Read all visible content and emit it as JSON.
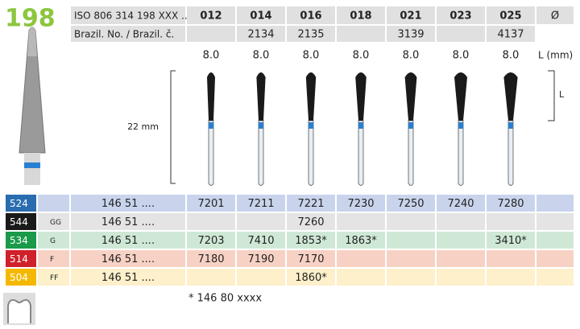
{
  "header": {
    "title": "198",
    "iso_label": "ISO 806 314 198 XXX ...",
    "sizes": [
      "012",
      "014",
      "016",
      "018",
      "021",
      "023",
      "025"
    ],
    "diameter_symbol": "Ø",
    "brazil_label": "Brazil. No. / Brazil. č.",
    "brazil_numbers": [
      null,
      "2134",
      "2135",
      null,
      "3139",
      null,
      "4137"
    ],
    "lengths": [
      "8.0",
      "8.0",
      "8.0",
      "8.0",
      "8.0",
      "8.0",
      "8.0"
    ],
    "length_unit": "L (mm)"
  },
  "dimensions": {
    "total": "22 mm",
    "head": "L"
  },
  "rows": [
    {
      "code": "524",
      "grit": null,
      "ref": "146 51 ....",
      "values": [
        "7201",
        "7211",
        "7221",
        "7230",
        "7250",
        "7240",
        "7280"
      ]
    },
    {
      "code": "544",
      "grit": "GG",
      "ref": "146 51 ....",
      "values": [
        null,
        null,
        "7260",
        null,
        null,
        null,
        null
      ]
    },
    {
      "code": "534",
      "grit": "G",
      "ref": "146 51 ....",
      "values": [
        "7203",
        "7410",
        "1853*",
        "1863*",
        null,
        null,
        "3410*"
      ]
    },
    {
      "code": "514",
      "grit": "F",
      "ref": "146 51 ....",
      "values": [
        "7180",
        "7190",
        "7170",
        null,
        null,
        null,
        null
      ]
    },
    {
      "code": "504",
      "grit": "FF",
      "ref": "146 51 ....",
      "values": [
        null,
        null,
        "1860*",
        null,
        null,
        null,
        null
      ]
    }
  ],
  "footnote": "*  146 80 xxxx"
}
